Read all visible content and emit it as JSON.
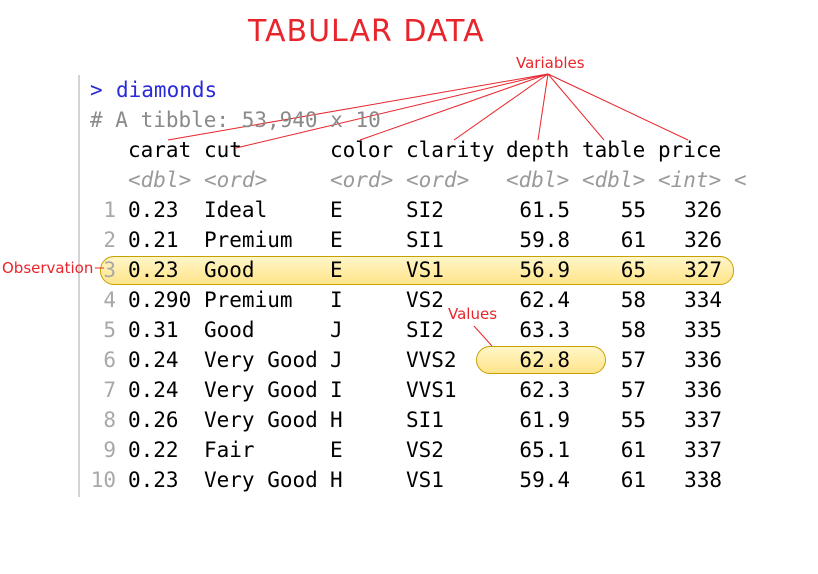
{
  "title": "TABULAR DATA",
  "labels": {
    "variables": "Variables",
    "observation": "Observation",
    "values": "Values"
  },
  "console": {
    "prompt": ">",
    "command": "diamonds",
    "comment": "# A tibble: 53,940 x 10"
  },
  "columns": [
    {
      "name": "carat",
      "type": "<dbl>"
    },
    {
      "name": "cut",
      "type": "<ord>"
    },
    {
      "name": "color",
      "type": "<ord>"
    },
    {
      "name": "clarity",
      "type": "<ord>"
    },
    {
      "name": "depth",
      "type": "<dbl>"
    },
    {
      "name": "table",
      "type": "<dbl>"
    },
    {
      "name": "price",
      "type": "<int>"
    }
  ],
  "type_overflow": "<",
  "rows": [
    {
      "n": "1",
      "carat": "0.23",
      "cut": "Ideal",
      "color": "E",
      "clarity": "SI2",
      "depth": "61.5",
      "table": "55",
      "price": "326"
    },
    {
      "n": "2",
      "carat": "0.21",
      "cut": "Premium",
      "color": "E",
      "clarity": "SI1",
      "depth": "59.8",
      "table": "61",
      "price": "326"
    },
    {
      "n": "3",
      "carat": "0.23",
      "cut": "Good",
      "color": "E",
      "clarity": "VS1",
      "depth": "56.9",
      "table": "65",
      "price": "327"
    },
    {
      "n": "4",
      "carat": "0.290",
      "cut": "Premium",
      "color": "I",
      "clarity": "VS2",
      "depth": "62.4",
      "table": "58",
      "price": "334"
    },
    {
      "n": "5",
      "carat": "0.31",
      "cut": "Good",
      "color": "J",
      "clarity": "SI2",
      "depth": "63.3",
      "table": "58",
      "price": "335"
    },
    {
      "n": "6",
      "carat": "0.24",
      "cut": "Very Good",
      "color": "J",
      "clarity": "VVS2",
      "depth": "62.8",
      "table": "57",
      "price": "336"
    },
    {
      "n": "7",
      "carat": "0.24",
      "cut": "Very Good",
      "color": "I",
      "clarity": "VVS1",
      "depth": "62.3",
      "table": "57",
      "price": "336"
    },
    {
      "n": "8",
      "carat": "0.26",
      "cut": "Very Good",
      "color": "H",
      "clarity": "SI1",
      "depth": "61.9",
      "table": "55",
      "price": "337"
    },
    {
      "n": "9",
      "carat": "0.22",
      "cut": "Fair",
      "color": "E",
      "clarity": "VS2",
      "depth": "65.1",
      "table": "61",
      "price": "337"
    },
    {
      "n": "10",
      "carat": "0.23",
      "cut": "Very Good",
      "color": "H",
      "clarity": "VS1",
      "depth": "59.4",
      "table": "61",
      "price": "338"
    }
  ],
  "colors": {
    "annotation": "#e8252b",
    "prompt": "#2a2ad8",
    "highlight": "#ffe48a"
  }
}
